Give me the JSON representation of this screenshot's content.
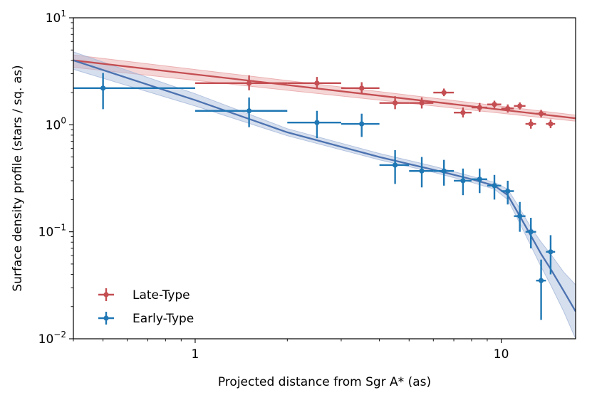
{
  "chart_data": {
    "type": "scatter",
    "title": "",
    "xlabel": "Projected distance from Sgr A* (as)",
    "ylabel": "Surface density profile (stars / sq. as)",
    "xscale": "log",
    "yscale": "log",
    "xlim": [
      0.4,
      17.5
    ],
    "ylim": [
      0.01,
      10
    ],
    "x_ticks": [
      {
        "value": 1,
        "label": "1"
      },
      {
        "value": 10,
        "label": "10"
      }
    ],
    "y_ticks": [
      {
        "value": 0.01,
        "base": "10",
        "exp": "−2"
      },
      {
        "value": 0.1,
        "base": "10",
        "exp": "−1"
      },
      {
        "value": 1,
        "base": "10",
        "exp": "0"
      },
      {
        "value": 10,
        "base": "10",
        "exp": "1"
      }
    ],
    "legend_position": "lower-left",
    "series": [
      {
        "name": "Late-Type",
        "color": "#c44e52",
        "points": [
          {
            "x": 1.5,
            "y": 2.45,
            "xerr": [
              0.5,
              0.5
            ],
            "yerr": [
              0.35,
              0.45
            ]
          },
          {
            "x": 2.5,
            "y": 2.45,
            "xerr": [
              0.5,
              0.5
            ],
            "yerr": [
              0.25,
              0.35
            ]
          },
          {
            "x": 3.5,
            "y": 2.2,
            "xerr": [
              0.5,
              0.5
            ],
            "yerr": [
              0.25,
              0.3
            ]
          },
          {
            "x": 4.5,
            "y": 1.6,
            "xerr": [
              0.5,
              0.5
            ],
            "yerr": [
              0.2,
              0.25
            ]
          },
          {
            "x": 5.5,
            "y": 1.6,
            "xerr": [
              0.5,
              0.5
            ],
            "yerr": [
              0.18,
              0.2
            ]
          },
          {
            "x": 6.5,
            "y": 2.0,
            "xerr": [
              0.5,
              0.5
            ],
            "yerr": [
              0.15,
              0.18
            ]
          },
          {
            "x": 7.5,
            "y": 1.3,
            "xerr": [
              0.5,
              0.5
            ],
            "yerr": [
              0.13,
              0.15
            ]
          },
          {
            "x": 8.5,
            "y": 1.45,
            "xerr": [
              0.5,
              0.5
            ],
            "yerr": [
              0.13,
              0.15
            ]
          },
          {
            "x": 9.5,
            "y": 1.55,
            "xerr": [
              0.5,
              0.5
            ],
            "yerr": [
              0.12,
              0.13
            ]
          },
          {
            "x": 10.5,
            "y": 1.42,
            "xerr": [
              0.5,
              0.5
            ],
            "yerr": [
              0.12,
              0.13
            ]
          },
          {
            "x": 11.5,
            "y": 1.5,
            "xerr": [
              0.5,
              0.5
            ],
            "yerr": [
              0.11,
              0.12
            ]
          },
          {
            "x": 12.5,
            "y": 1.02,
            "xerr": [
              0.5,
              0.5
            ],
            "yerr": [
              0.1,
              0.11
            ]
          },
          {
            "x": 13.5,
            "y": 1.27,
            "xerr": [
              0.5,
              0.5
            ],
            "yerr": [
              0.1,
              0.11
            ]
          },
          {
            "x": 14.5,
            "y": 1.02,
            "xerr": [
              0.5,
              0.5
            ],
            "yerr": [
              0.09,
              0.1
            ]
          }
        ],
        "model": {
          "x": [
            0.4,
            17.5
          ],
          "y": [
            4.0,
            1.15
          ],
          "band_lower": [
            3.45,
            1.08
          ],
          "band_upper": [
            4.5,
            1.23
          ]
        }
      },
      {
        "name": "Early-Type",
        "color": "#1f77b4",
        "points": [
          {
            "x": 0.5,
            "y": 2.2,
            "xerr": [
              0.5,
              0.5
            ],
            "yerr": [
              0.8,
              0.85
            ]
          },
          {
            "x": 1.5,
            "y": 1.35,
            "xerr": [
              0.5,
              0.5
            ],
            "yerr": [
              0.4,
              0.45
            ]
          },
          {
            "x": 2.5,
            "y": 1.05,
            "xerr": [
              0.5,
              0.5
            ],
            "yerr": [
              0.3,
              0.3
            ]
          },
          {
            "x": 3.5,
            "y": 1.02,
            "xerr": [
              0.5,
              0.5
            ],
            "yerr": [
              0.25,
              0.25
            ]
          },
          {
            "x": 4.5,
            "y": 0.42,
            "xerr": [
              0.5,
              0.5
            ],
            "yerr": [
              0.14,
              0.16
            ]
          },
          {
            "x": 5.5,
            "y": 0.37,
            "xerr": [
              0.5,
              0.5
            ],
            "yerr": [
              0.11,
              0.13
            ]
          },
          {
            "x": 6.5,
            "y": 0.37,
            "xerr": [
              0.5,
              0.5
            ],
            "yerr": [
              0.1,
              0.1
            ]
          },
          {
            "x": 7.5,
            "y": 0.3,
            "xerr": [
              0.5,
              0.5
            ],
            "yerr": [
              0.08,
              0.09
            ]
          },
          {
            "x": 8.5,
            "y": 0.31,
            "xerr": [
              0.5,
              0.5
            ],
            "yerr": [
              0.08,
              0.08
            ]
          },
          {
            "x": 9.5,
            "y": 0.27,
            "xerr": [
              0.5,
              0.5
            ],
            "yerr": [
              0.07,
              0.07
            ]
          },
          {
            "x": 10.5,
            "y": 0.24,
            "xerr": [
              0.5,
              0.5
            ],
            "yerr": [
              0.06,
              0.06
            ]
          },
          {
            "x": 11.5,
            "y": 0.14,
            "xerr": [
              0.5,
              0.5
            ],
            "yerr": [
              0.04,
              0.05
            ]
          },
          {
            "x": 12.5,
            "y": 0.1,
            "xerr": [
              0.5,
              0.5
            ],
            "yerr": [
              0.03,
              0.035
            ]
          },
          {
            "x": 13.5,
            "y": 0.035,
            "xerr": [
              0.5,
              0.5
            ],
            "yerr": [
              0.02,
              0.02
            ]
          },
          {
            "x": 14.5,
            "y": 0.065,
            "xerr": [
              0.5,
              0.5
            ],
            "yerr": [
              0.025,
              0.028
            ]
          }
        ],
        "model": {
          "x": [
            0.4,
            1.0,
            2.0,
            4.0,
            6.0,
            8.0,
            9.5,
            10.5,
            11.5,
            12.5,
            13.5,
            14.5,
            16.0,
            17.5
          ],
          "y": [
            4.0,
            1.7,
            0.85,
            0.5,
            0.38,
            0.31,
            0.27,
            0.22,
            0.14,
            0.092,
            0.062,
            0.045,
            0.028,
            0.018
          ],
          "band_lower": [
            3.3,
            1.5,
            0.79,
            0.47,
            0.36,
            0.29,
            0.25,
            0.2,
            0.12,
            0.074,
            0.047,
            0.032,
            0.018,
            0.01
          ],
          "band_upper": [
            4.8,
            1.95,
            0.92,
            0.54,
            0.41,
            0.33,
            0.29,
            0.25,
            0.165,
            0.11,
            0.08,
            0.062,
            0.042,
            0.032
          ]
        }
      }
    ]
  }
}
